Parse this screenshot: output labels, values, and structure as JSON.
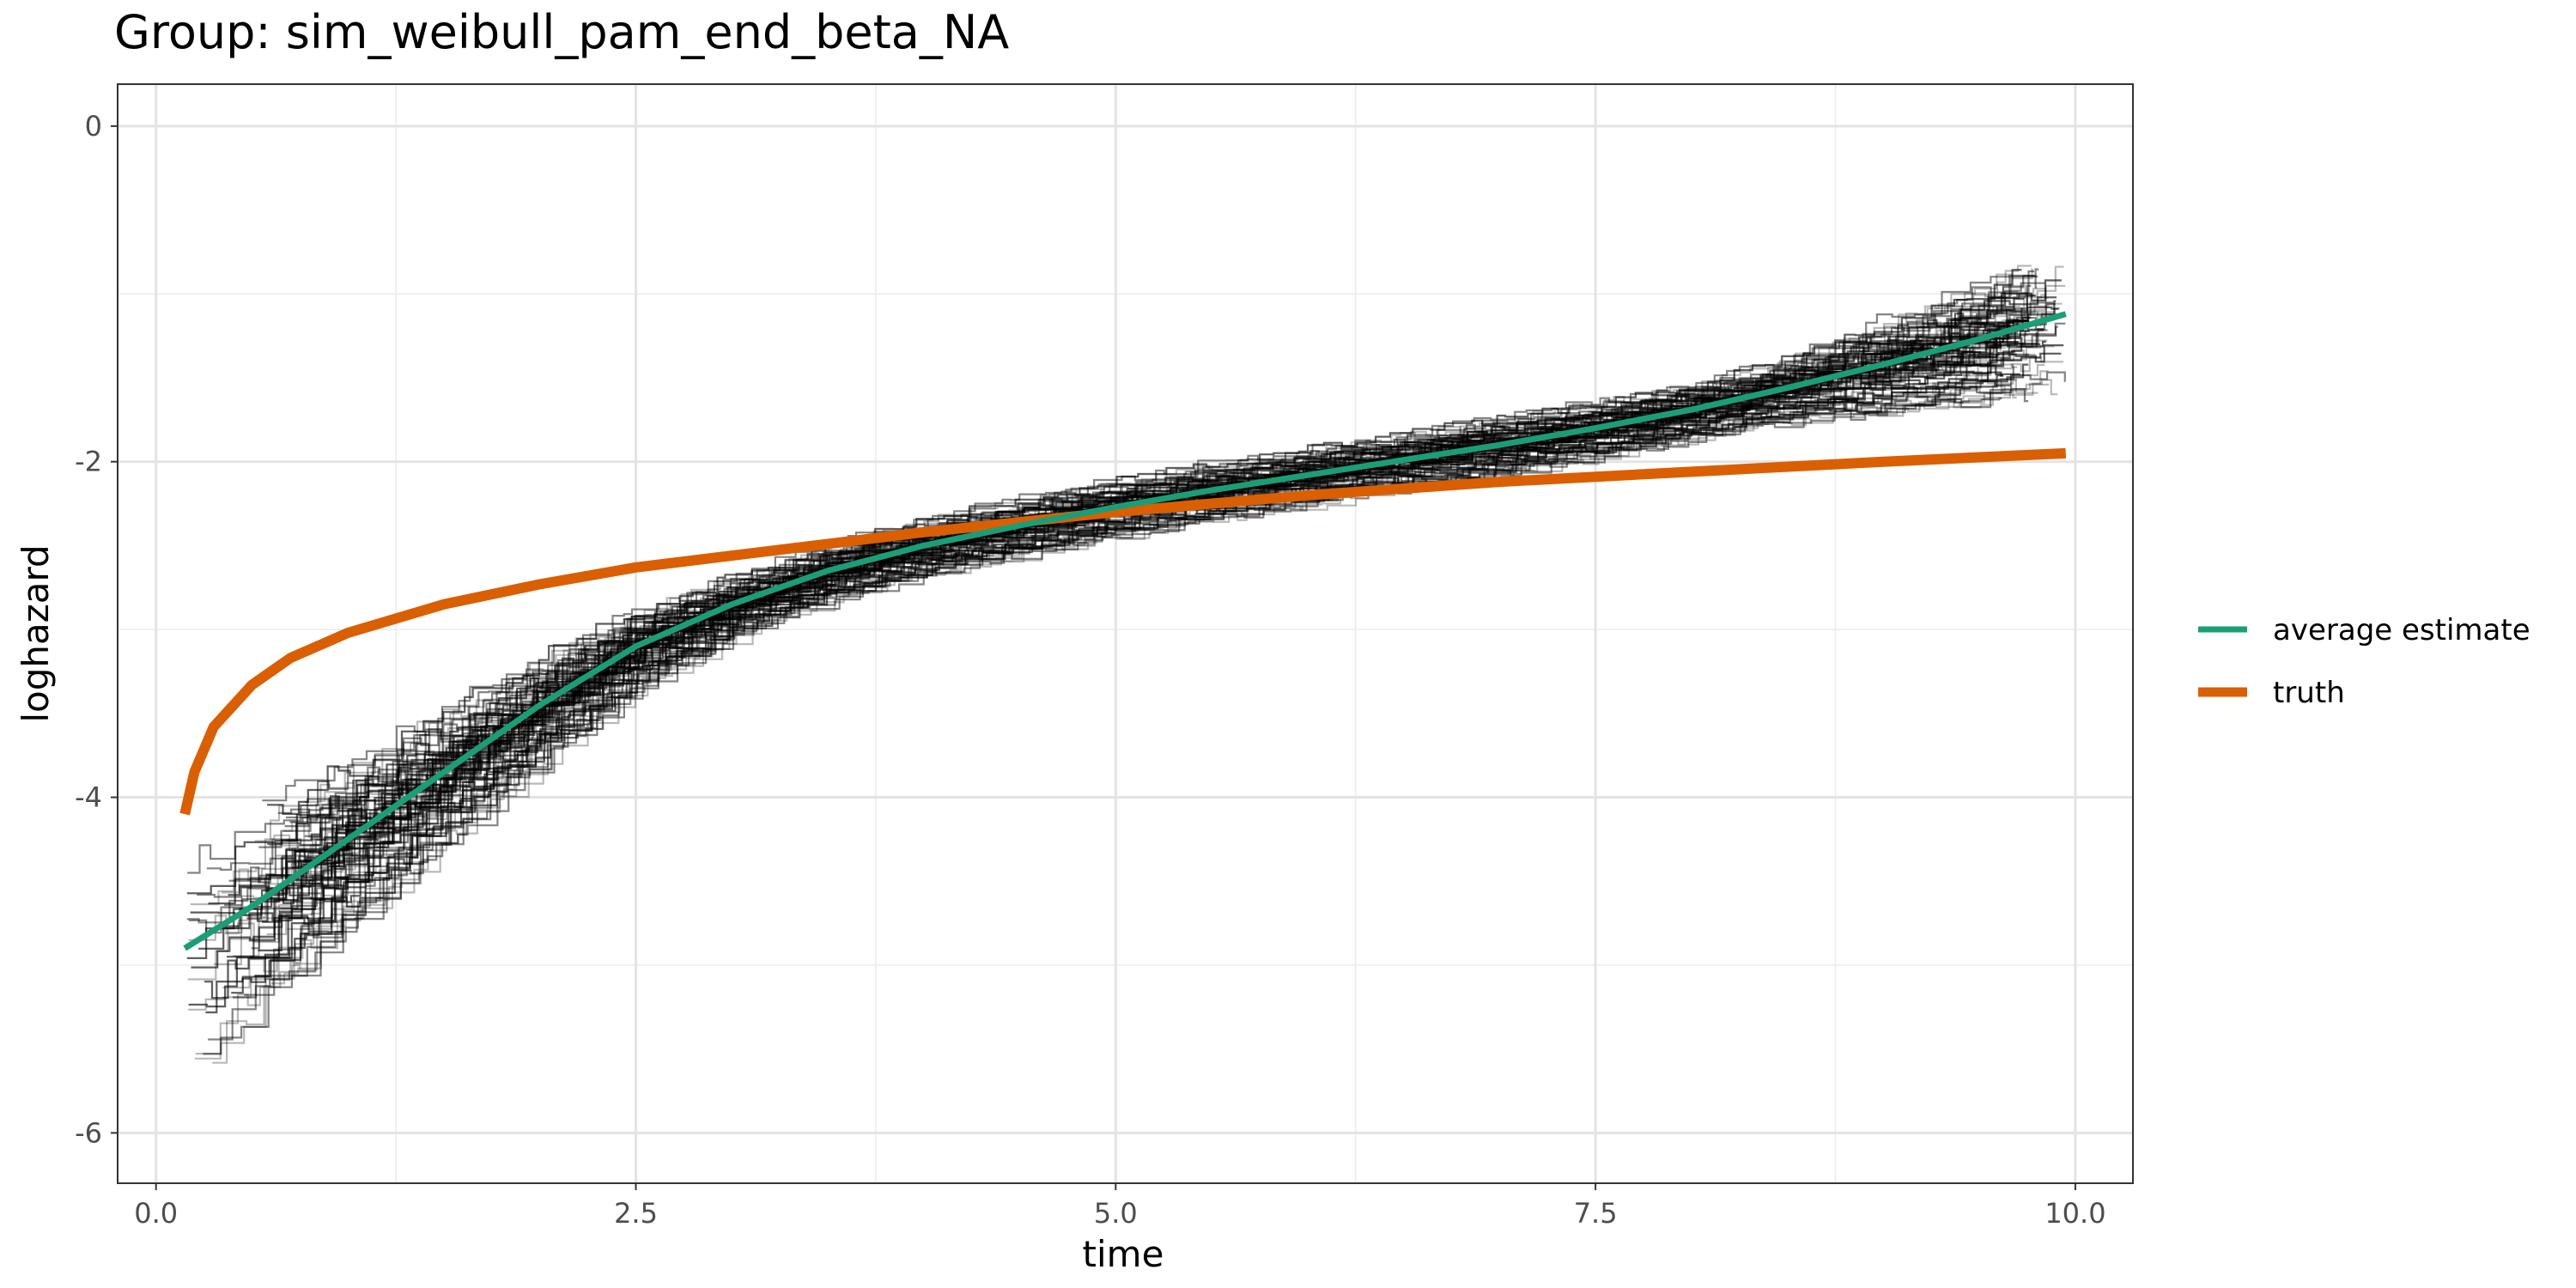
{
  "chart_data": {
    "type": "line",
    "title": "Group: sim_weibull_pam_end_beta_NA",
    "xlabel": "time",
    "ylabel": "loghazard",
    "xlim": [
      -0.2,
      10.3
    ],
    "ylim": [
      -6.3,
      0.25
    ],
    "x_ticks": [
      0.0,
      2.5,
      5.0,
      7.5,
      10.0
    ],
    "x_tick_labels": [
      "0.0",
      "2.5",
      "5.0",
      "7.5",
      "10.0"
    ],
    "y_ticks": [
      0,
      -2,
      -4,
      -6
    ],
    "y_tick_labels": [
      "0",
      "-2",
      "-4",
      "-6"
    ],
    "grid": true,
    "legend_position": "right",
    "colors": {
      "average_estimate": "#1b9e77",
      "truth": "#d95f02",
      "replicates": "#000000"
    },
    "series": [
      {
        "name": "average estimate",
        "x": [
          0.15,
          0.5,
          1.0,
          1.5,
          2.0,
          2.5,
          3.0,
          3.5,
          4.0,
          4.5,
          5.0,
          5.5,
          6.0,
          6.5,
          7.0,
          7.5,
          8.0,
          8.5,
          9.0,
          9.5,
          9.95
        ],
        "y": [
          -4.9,
          -4.65,
          -4.25,
          -3.85,
          -3.45,
          -3.1,
          -2.85,
          -2.65,
          -2.5,
          -2.38,
          -2.27,
          -2.17,
          -2.08,
          -1.99,
          -1.9,
          -1.8,
          -1.69,
          -1.56,
          -1.42,
          -1.27,
          -1.12
        ]
      },
      {
        "name": "truth",
        "x": [
          0.15,
          0.2,
          0.3,
          0.5,
          0.7,
          1.0,
          1.5,
          2.0,
          2.5,
          3.0,
          4.0,
          5.0,
          6.0,
          7.0,
          8.0,
          9.0,
          9.95
        ],
        "y": [
          -4.1,
          -3.85,
          -3.58,
          -3.33,
          -3.17,
          -3.02,
          -2.85,
          -2.73,
          -2.63,
          -2.56,
          -2.42,
          -2.3,
          -2.2,
          -2.12,
          -2.06,
          -2.0,
          -1.95
        ]
      }
    ]
  },
  "legend": {
    "items": [
      {
        "label": "average estimate"
      },
      {
        "label": "truth"
      }
    ]
  }
}
